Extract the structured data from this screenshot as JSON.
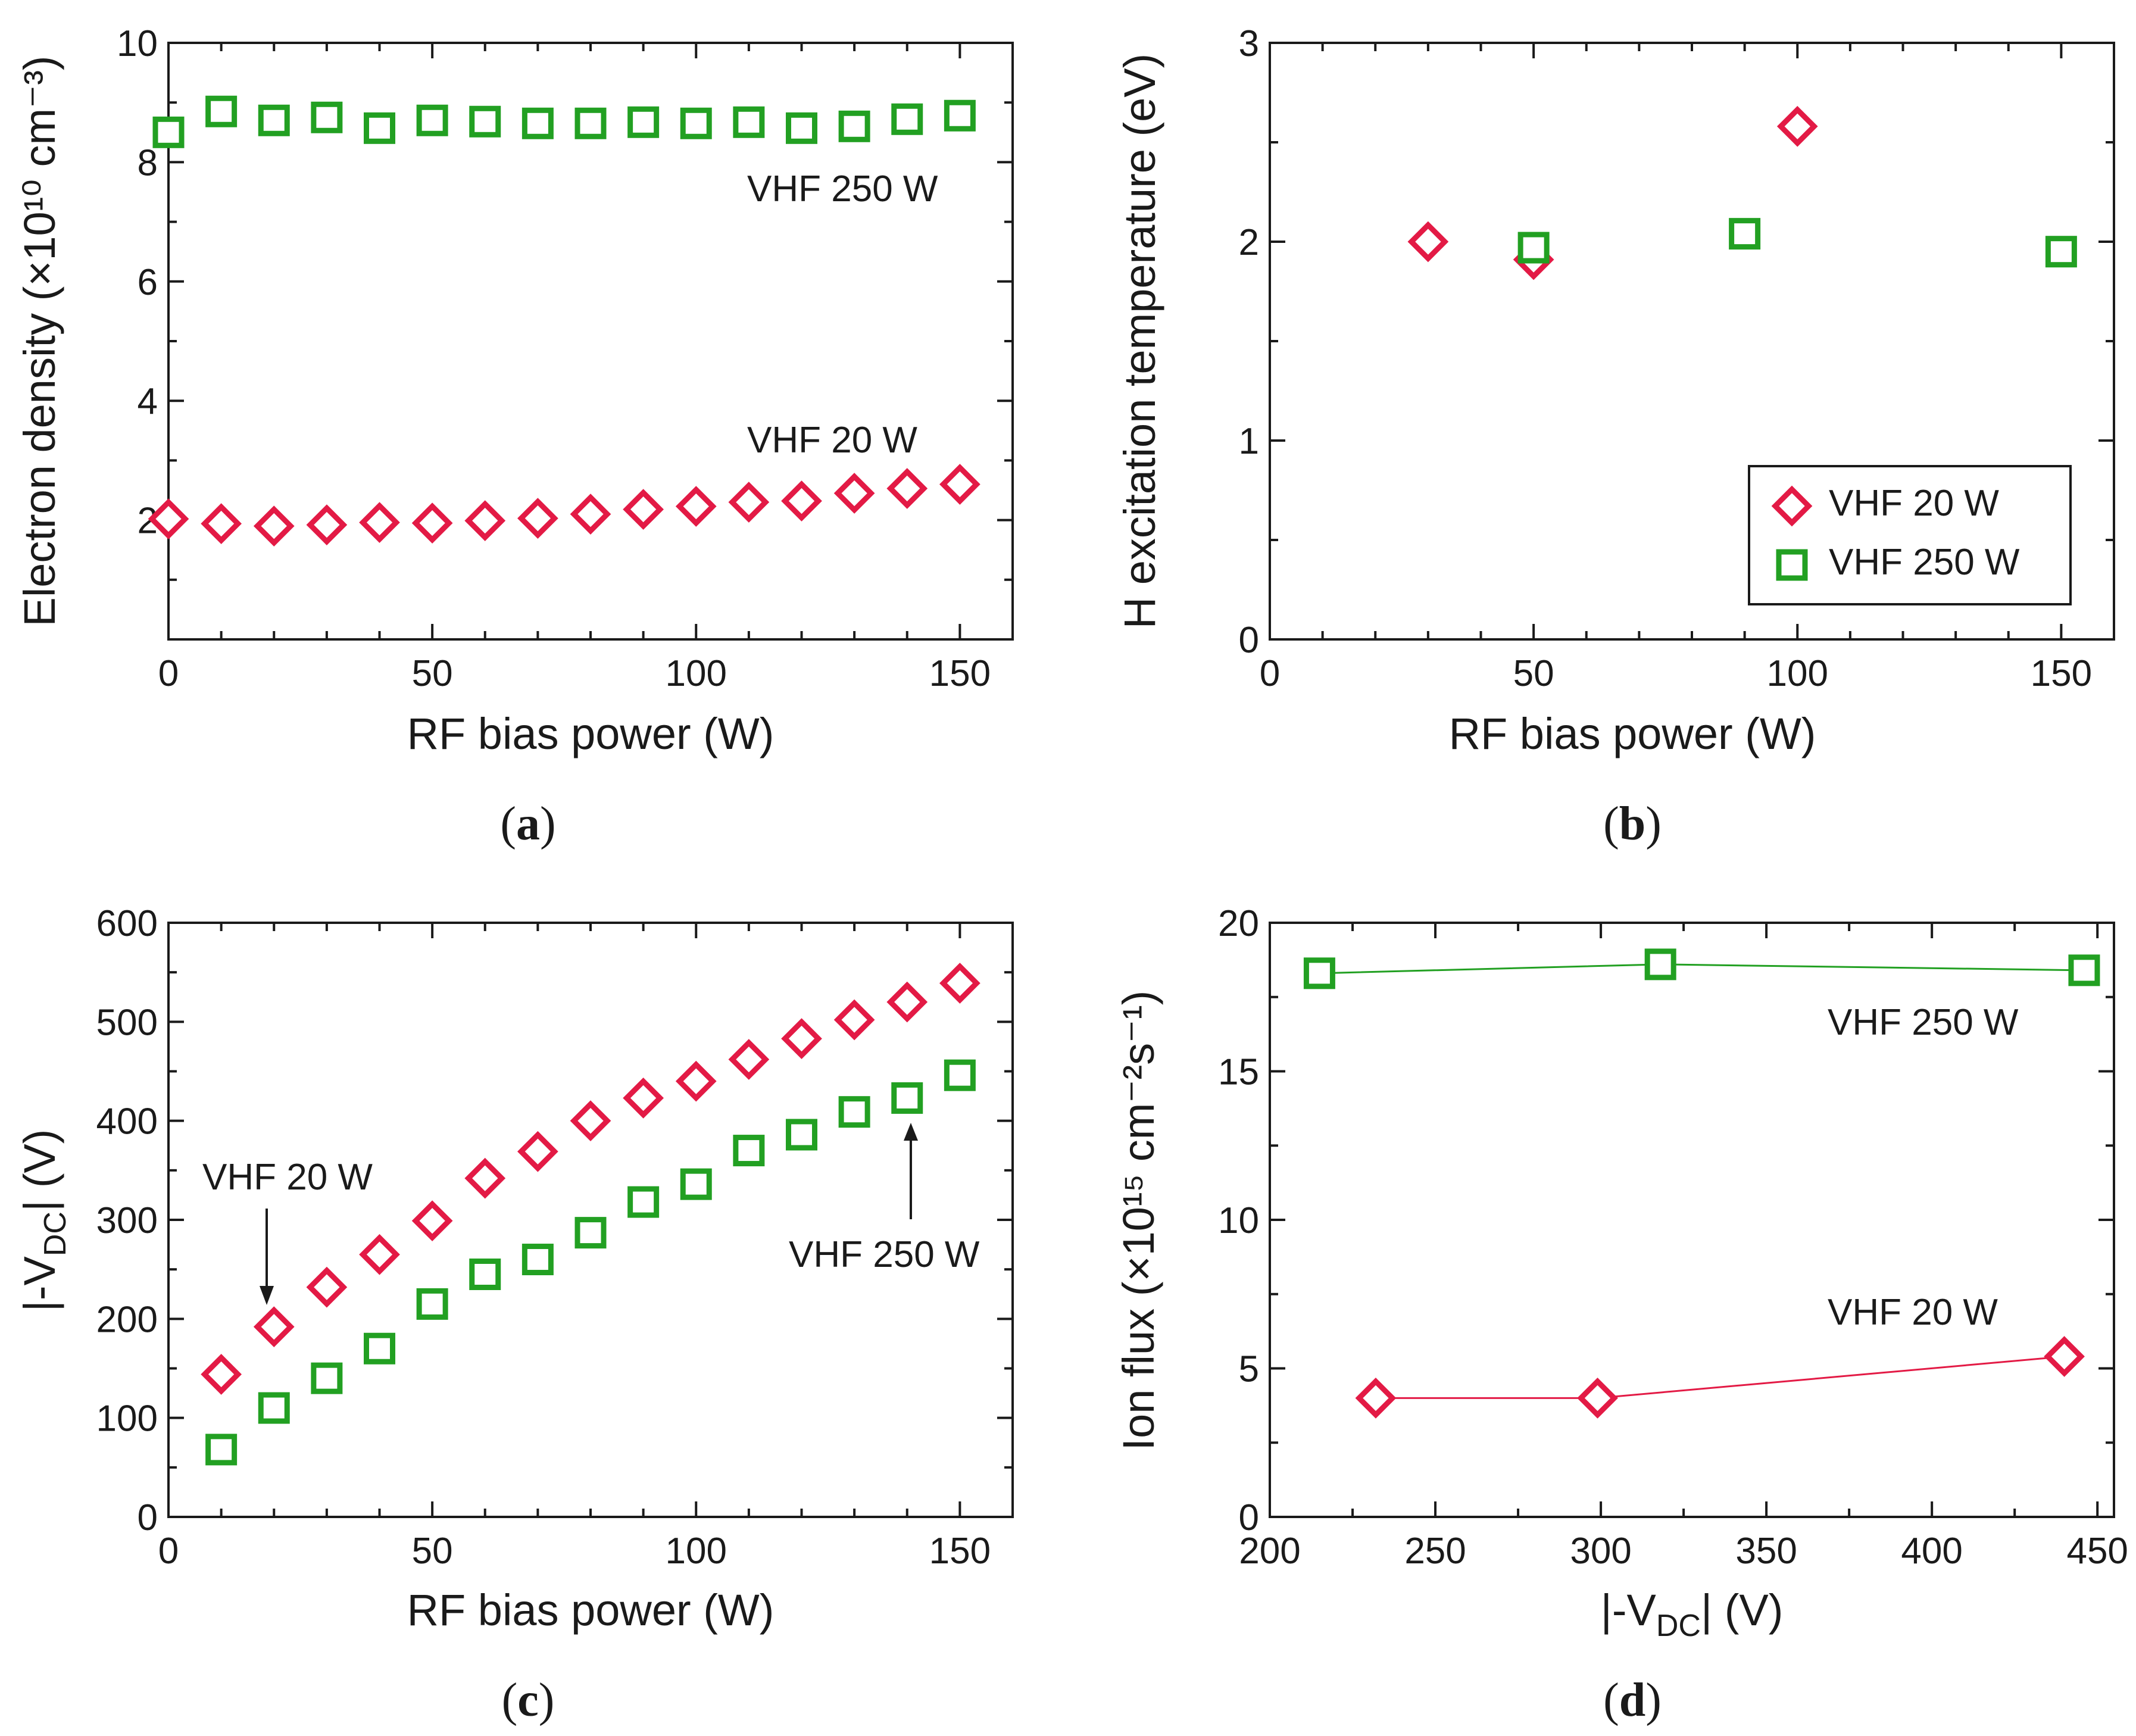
{
  "colors": {
    "vhf20": "#e31a45",
    "vhf250": "#22a022",
    "axis": "#1a1a1a"
  },
  "panels": [
    {
      "id": "a",
      "label_open": "(",
      "label_letter": "a",
      "label_close": ")",
      "xlabel": "RF bias power (W)",
      "ylabel": "Electron density (×10¹⁰ cm⁻³)",
      "x_ticks": [
        "0",
        "50",
        "100",
        "150"
      ],
      "y_ticks": [
        "2",
        "4",
        "6",
        "8",
        "10"
      ],
      "text_labels": [
        "VHF 250 W",
        "VHF 20 W"
      ]
    },
    {
      "id": "b",
      "label_open": "(",
      "label_letter": "b",
      "label_close": ")",
      "xlabel": "RF bias power (W)",
      "ylabel": "H excitation temperature (eV)",
      "x_ticks": [
        "0",
        "50",
        "100",
        "150"
      ],
      "y_ticks": [
        "0",
        "1",
        "2",
        "3"
      ],
      "legend": [
        "VHF 20 W",
        "VHF 250 W"
      ]
    },
    {
      "id": "c",
      "label_open": "(",
      "label_letter": "c",
      "label_close": ")",
      "xlabel": "RF bias power (W)",
      "ylabel": "|-V_DC| (V)",
      "ylabel_pre": "|-V",
      "ylabel_sub": "DC",
      "ylabel_post": "| (V)",
      "x_ticks": [
        "0",
        "50",
        "100",
        "150"
      ],
      "y_ticks": [
        "0",
        "100",
        "200",
        "300",
        "400",
        "500",
        "600"
      ],
      "text_labels": [
        "VHF 20 W",
        "VHF 250 W"
      ]
    },
    {
      "id": "d",
      "label_open": "(",
      "label_letter": "d",
      "label_close": ")",
      "xlabel": "|-V_DC| (V)",
      "xlabel_pre": "|-V",
      "xlabel_sub": "DC",
      "xlabel_post": "| (V)",
      "ylabel": "Ion flux (×10¹⁵ cm⁻²s⁻¹)",
      "x_ticks": [
        "200",
        "250",
        "300",
        "350",
        "400",
        "450"
      ],
      "y_ticks": [
        "0",
        "5",
        "10",
        "15",
        "20"
      ],
      "text_labels": [
        "VHF 250 W",
        "VHF 20 W"
      ]
    }
  ],
  "chart_data": [
    {
      "panel": "a",
      "type": "scatter",
      "title": "",
      "xlabel": "RF bias power (W)",
      "ylabel": "Electron density (×10¹⁰ cm⁻³)",
      "xlim": [
        0,
        160
      ],
      "ylim": [
        0,
        10
      ],
      "series": [
        {
          "name": "VHF 250 W",
          "marker": "square",
          "color": "#22a022",
          "x": [
            0,
            10,
            20,
            30,
            40,
            50,
            60,
            70,
            80,
            90,
            100,
            110,
            120,
            130,
            140,
            150
          ],
          "y": [
            8.5,
            8.85,
            8.7,
            8.75,
            8.57,
            8.7,
            8.68,
            8.65,
            8.65,
            8.67,
            8.65,
            8.67,
            8.57,
            8.6,
            8.72,
            8.78
          ]
        },
        {
          "name": "VHF 20 W",
          "marker": "diamond",
          "color": "#e31a45",
          "x": [
            0,
            10,
            20,
            30,
            40,
            50,
            60,
            70,
            80,
            90,
            100,
            110,
            120,
            130,
            140,
            150
          ],
          "y": [
            2.02,
            1.94,
            1.9,
            1.92,
            1.96,
            1.95,
            1.99,
            2.03,
            2.1,
            2.18,
            2.23,
            2.3,
            2.32,
            2.45,
            2.53,
            2.6
          ]
        }
      ]
    },
    {
      "panel": "b",
      "type": "scatter",
      "title": "",
      "xlabel": "RF bias power (W)",
      "ylabel": "H excitation temperature (eV)",
      "xlim": [
        0,
        160
      ],
      "ylim": [
        0,
        3
      ],
      "legend": "bottom-right",
      "series": [
        {
          "name": "VHF 20 W",
          "marker": "diamond",
          "color": "#e31a45",
          "x": [
            30,
            50,
            100
          ],
          "y": [
            2.0,
            1.91,
            2.58
          ]
        },
        {
          "name": "VHF 250 W",
          "marker": "square",
          "color": "#22a022",
          "x": [
            50,
            90,
            150
          ],
          "y": [
            1.97,
            2.04,
            1.95
          ]
        }
      ]
    },
    {
      "panel": "c",
      "type": "scatter",
      "title": "",
      "xlabel": "RF bias power (W)",
      "ylabel": "|-V_DC| (V)",
      "xlim": [
        0,
        160
      ],
      "ylim": [
        0,
        600
      ],
      "series": [
        {
          "name": "VHF 20 W",
          "marker": "diamond",
          "color": "#e31a45",
          "x": [
            10,
            20,
            30,
            40,
            50,
            60,
            70,
            80,
            90,
            100,
            110,
            120,
            130,
            140,
            150
          ],
          "y": [
            144,
            192,
            232,
            265,
            299,
            342,
            369,
            400,
            423,
            440,
            462,
            483,
            502,
            520,
            539
          ]
        },
        {
          "name": "VHF 250 W",
          "marker": "square",
          "color": "#22a022",
          "x": [
            10,
            20,
            30,
            40,
            50,
            60,
            70,
            80,
            90,
            100,
            110,
            120,
            130,
            140,
            150
          ],
          "y": [
            68,
            110,
            140,
            170,
            215,
            245,
            260,
            287,
            318,
            336,
            370,
            386,
            409,
            423,
            446
          ]
        }
      ]
    },
    {
      "panel": "d",
      "type": "line",
      "title": "",
      "xlabel": "|-V_DC| (V)",
      "ylabel": "Ion flux (×10¹⁵ cm⁻²s⁻¹)",
      "xlim": [
        200,
        455
      ],
      "ylim": [
        0,
        20
      ],
      "series": [
        {
          "name": "VHF 250 W",
          "marker": "square",
          "color": "#22a022",
          "x": [
            215,
            318,
            446
          ],
          "y": [
            18.3,
            18.6,
            18.4
          ]
        },
        {
          "name": "VHF 20 W",
          "marker": "diamond",
          "color": "#e31a45",
          "x": [
            232,
            299,
            440
          ],
          "y": [
            4.0,
            4.0,
            5.4
          ]
        }
      ]
    }
  ]
}
